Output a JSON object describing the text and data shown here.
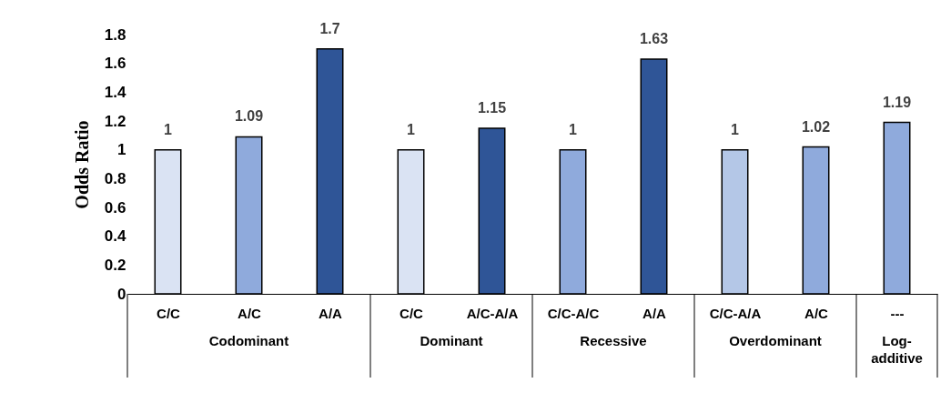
{
  "chart_data": {
    "type": "bar",
    "ylabel": "Odds Ratio",
    "categories": [
      "C/C",
      "A/C",
      "A/A",
      "C/C",
      "A/C-A/A",
      "C/C-A/C",
      "A/A",
      "C/C-A/A",
      "A/C",
      "---"
    ],
    "values": [
      1,
      1.09,
      1.7,
      1,
      1.15,
      1,
      1.63,
      1,
      1.02,
      1.19
    ],
    "colors": [
      "#dae3f3",
      "#8faadc",
      "#2f5597",
      "#dae3f3",
      "#2f5597",
      "#8faadc",
      "#2f5597",
      "#b4c7e7",
      "#8faadc",
      "#8faadc"
    ],
    "ylim": [
      0,
      1.8
    ],
    "yticks": [
      0,
      0.2,
      0.4,
      0.6,
      0.8,
      1,
      1.2,
      1.4,
      1.6,
      1.8
    ],
    "annotations": [
      "Codominant",
      "Dominant",
      "Recessive",
      "Overdominant",
      "Log-additive"
    ],
    "data_labels": true,
    "grid": false
  }
}
